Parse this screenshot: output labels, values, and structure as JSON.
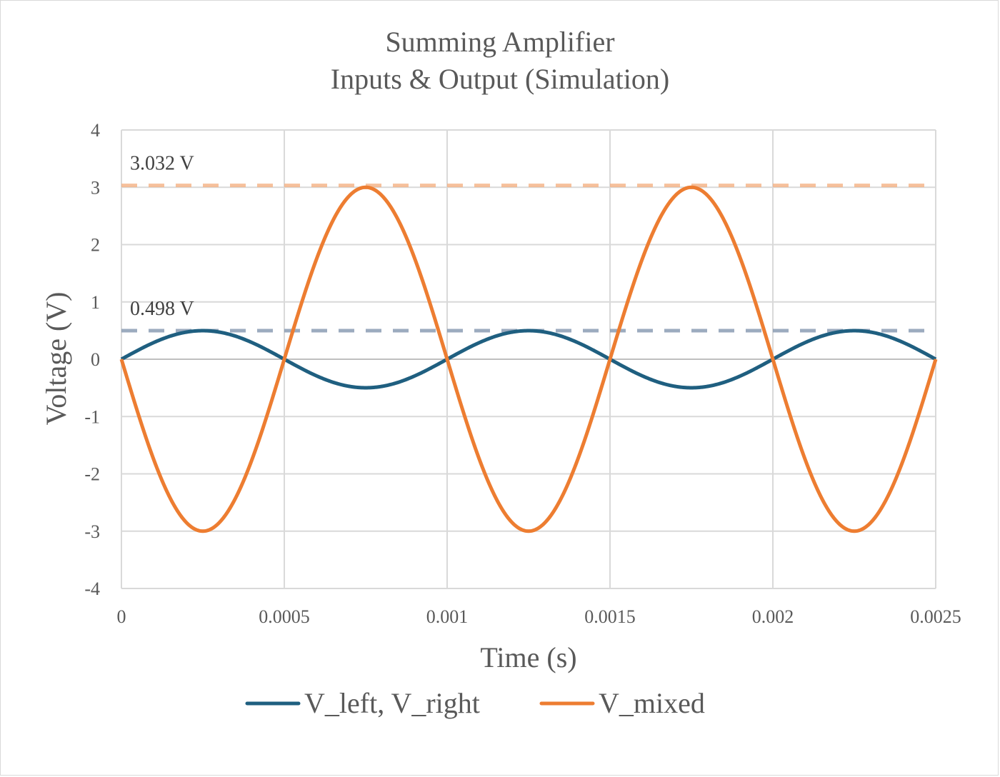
{
  "chart_data": {
    "type": "line",
    "title": [
      "Summing Amplifier",
      "Inputs & Output (Simulation)"
    ],
    "xlabel": "Time (s)",
    "ylabel": "Voltage (V)",
    "xlim": [
      0,
      0.0025
    ],
    "ylim": [
      -4,
      4
    ],
    "x_ticks": [
      "0",
      "0.0005",
      "0.001",
      "0.0015",
      "0.002",
      "0.0025"
    ],
    "y_ticks": [
      "4",
      "3",
      "2",
      "1",
      "0",
      "-1",
      "-2",
      "-3",
      "-4"
    ],
    "grid": true,
    "legend_position": "bottom",
    "series": [
      {
        "name": "V_left, V_right",
        "color": "#1f5f80",
        "amplitude": 0.498,
        "frequency_hz": 1000,
        "phase": "sin"
      },
      {
        "name": "V_mixed",
        "color": "#ed7d31",
        "amplitude": 3.0,
        "frequency_hz": 1000,
        "phase": "-sin"
      }
    ],
    "reference_lines": [
      {
        "label": "3.032 V",
        "y": 3.032,
        "color": "#f4b183"
      },
      {
        "label": "0.498 V",
        "y": 0.498,
        "color": "#8497b0"
      }
    ]
  }
}
